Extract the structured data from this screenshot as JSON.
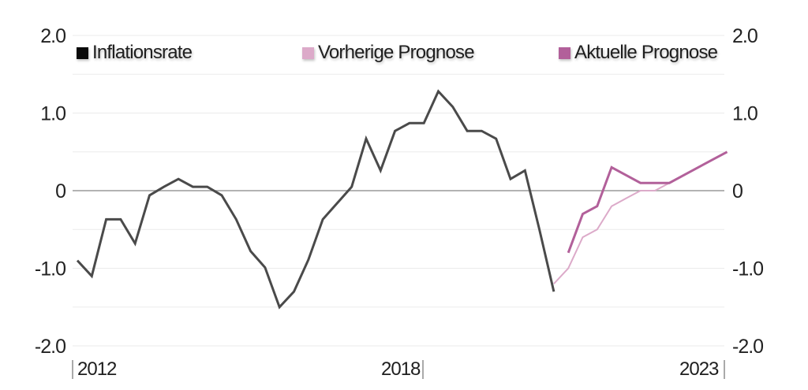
{
  "legend": {
    "items": [
      {
        "label": "Inflationsrate",
        "color": "#0a0a0a"
      },
      {
        "label": "Vorherige Prognose",
        "color": "#dcaac9"
      },
      {
        "label": "Aktuelle Prognose",
        "color": "#b2609a"
      }
    ]
  },
  "axes": {
    "y_ticks_left": [
      "2.0",
      "1.0",
      "0",
      "-1.0",
      "-2.0"
    ],
    "y_ticks_right": [
      "2.0",
      "1.0",
      "0",
      "-1.0",
      "-2.0"
    ],
    "x_labels": [
      "2012",
      "2018",
      "2023"
    ]
  },
  "chart_data": {
    "type": "line",
    "title": "",
    "xlabel": "",
    "ylabel": "",
    "ylim": [
      -2.0,
      2.0
    ],
    "yticks": [
      2.0,
      1.0,
      0,
      -1.0,
      -2.0
    ],
    "grid": true,
    "grid_step": 0.5,
    "legend_position": "top",
    "x_tick_labels": [
      "2012",
      "2018",
      "2023"
    ],
    "x_tick_index": {
      "2012": 0,
      "2018": 24,
      "2023": 45
    },
    "x_unit": "quarter index (0 = 2012)",
    "series": [
      {
        "name": "Inflationsrate",
        "color": "#4a4a4a",
        "start_index": 0,
        "values": [
          -0.9,
          -1.1,
          -0.37,
          -0.37,
          -0.68,
          -0.06,
          0.05,
          0.15,
          0.05,
          0.05,
          -0.06,
          -0.37,
          -0.78,
          -0.99,
          -1.5,
          -1.3,
          -0.89,
          -0.37,
          -0.16,
          0.05,
          0.67,
          0.26,
          0.77,
          0.87,
          0.87,
          1.28,
          1.08,
          0.77,
          0.77,
          0.67,
          0.15,
          0.26,
          -0.5,
          -1.3
        ]
      },
      {
        "name": "Vorherige Prognose",
        "color": "#dcaac9",
        "start_index": 33,
        "values": [
          -1.2,
          -1.0,
          -0.6,
          -0.5,
          -0.2,
          -0.1,
          0.0,
          0.0,
          0.1,
          0.2,
          0.3,
          0.4,
          0.5
        ]
      },
      {
        "name": "Aktuelle Prognose",
        "color": "#b2609a",
        "start_index": 34,
        "values": [
          -0.8,
          -0.3,
          -0.2,
          0.3,
          0.2,
          0.1,
          0.1,
          0.1,
          0.2,
          0.3,
          0.4,
          0.5
        ]
      }
    ]
  }
}
